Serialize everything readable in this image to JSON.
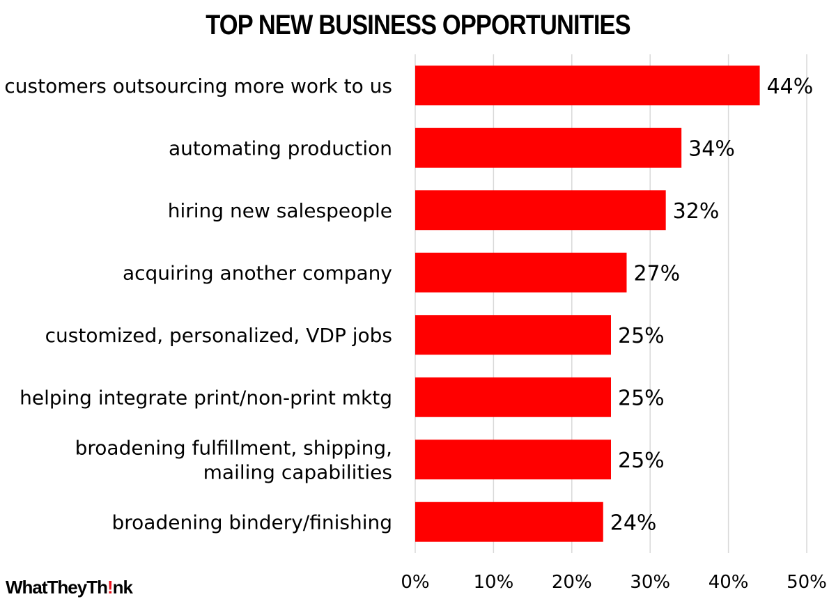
{
  "chart_data": {
    "type": "bar",
    "orientation": "horizontal",
    "title": "TOP NEW BUSINESS OPPORTUNITIES",
    "categories": [
      [
        "customers outsourcing more work to us"
      ],
      [
        "automating production"
      ],
      [
        "hiring new salespeople"
      ],
      [
        "acquiring another company"
      ],
      [
        "customized, personalized, VDP jobs"
      ],
      [
        "helping integrate print/non-print mktg"
      ],
      [
        "broadening fulfillment, shipping,",
        "mailing capabilities"
      ],
      [
        "broadening bindery/finishing"
      ]
    ],
    "values": [
      44,
      34,
      32,
      27,
      25,
      25,
      25,
      24
    ],
    "data_labels": [
      "44%",
      "34%",
      "32%",
      "27%",
      "25%",
      "25%",
      "25%",
      "24%"
    ],
    "xlim": [
      0,
      50
    ],
    "x_ticks": [
      0,
      10,
      20,
      30,
      40,
      50
    ],
    "x_tick_labels": [
      "0%",
      "10%",
      "20%",
      "30%",
      "40%",
      "50%"
    ],
    "xlabel": "",
    "ylabel": "",
    "grid": "vertical",
    "bar_color": "#ff0000",
    "grid_color": "#d9d9d9"
  },
  "logo": {
    "prefix": "WhatTheyTh",
    "bang": "!",
    "suffix": "nk"
  }
}
